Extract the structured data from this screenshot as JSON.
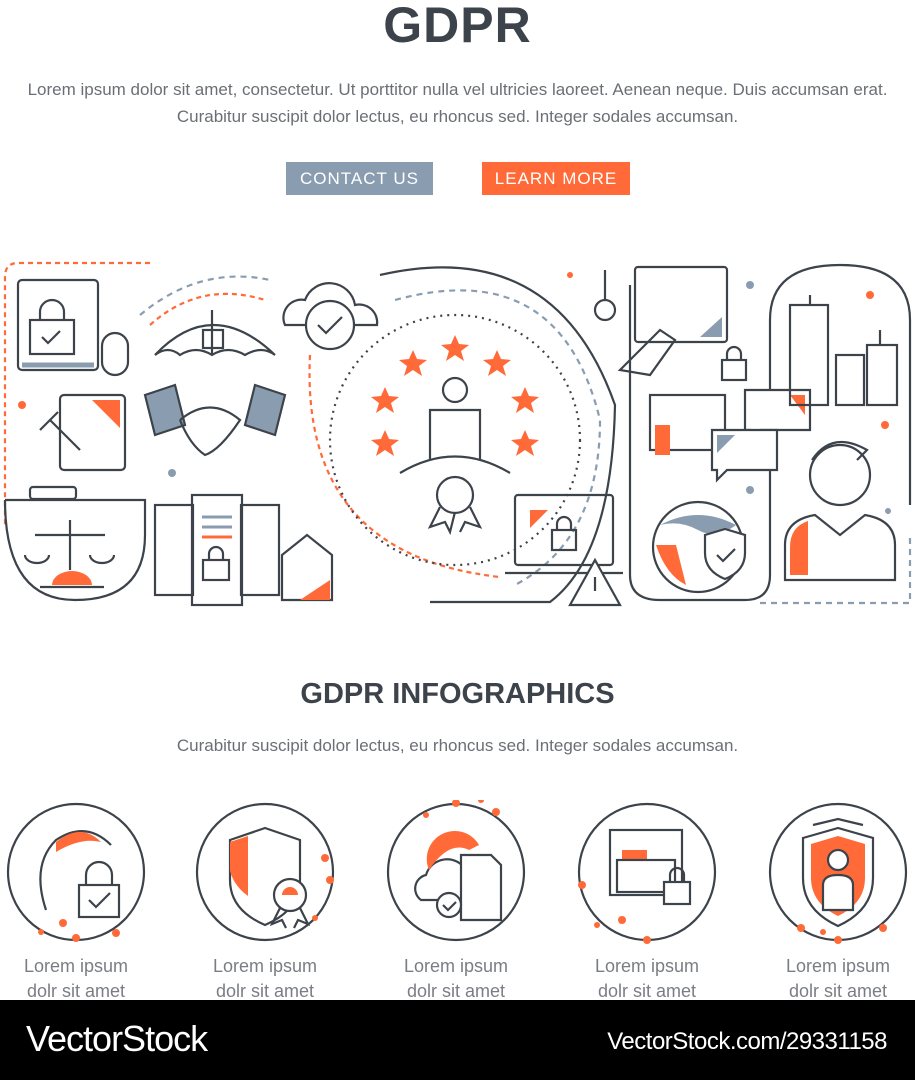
{
  "header": {
    "title": "GDPR",
    "intro_lines": [
      "Lorem ipsum dolor sit amet, consectetur. Ut porttitor nulla vel ultricies laoreet. Aenean neque. Duis accumsan erat.",
      "Curabitur suscipit dolor lectus, eu rhoncus sed. Integer sodales accumsan."
    ]
  },
  "buttons": {
    "contact": "CONTACT US",
    "learn": "LEARN MORE"
  },
  "colors": {
    "dark": "#3d434b",
    "accent": "#ff6a38",
    "secondary": "#8a9db0"
  },
  "infographics": {
    "title": "GDPR INFOGRAPHICS",
    "subtitle": "Curabitur suscipit dolor lectus, eu rhoncus sed. Integer sodales accumsan.",
    "items": [
      {
        "icon": "user-lock-icon",
        "line1": "Lorem ipsum",
        "line2": "dolr sit amet"
      },
      {
        "icon": "shield-certificate-icon",
        "line1": "Lorem ipsum",
        "line2": "dolr sit amet"
      },
      {
        "icon": "cloud-document-icon",
        "line1": "Lorem ipsum",
        "line2": "dolr sit amet"
      },
      {
        "icon": "archive-lock-icon",
        "line1": "Lorem ipsum",
        "line2": "dolr sit amet"
      },
      {
        "icon": "shield-user-icon",
        "line1": "Lorem ipsum",
        "line2": "dolr sit amet"
      }
    ]
  },
  "watermark": {
    "logo": "VectorStock",
    "url": "VectorStock.com/29331158"
  }
}
